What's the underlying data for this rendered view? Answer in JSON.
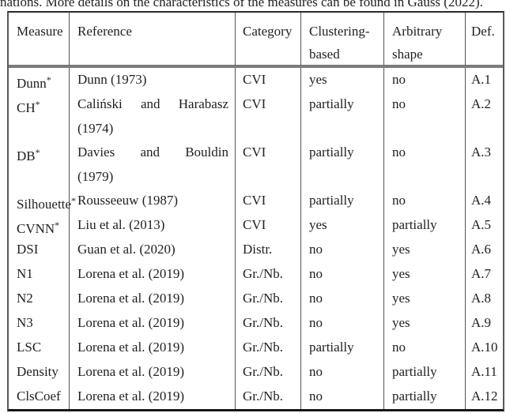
{
  "caption": "nations. More details on the characteristics of the measures can be found in Gauss (2022).",
  "footnote_marker": "*",
  "table": {
    "columns": [
      {
        "id": "measure",
        "label_lines": [
          "Measure"
        ]
      },
      {
        "id": "reference",
        "label_lines": [
          "Reference"
        ]
      },
      {
        "id": "category",
        "label_lines": [
          "Category"
        ]
      },
      {
        "id": "clustering-based",
        "label_lines": [
          "Clustering-",
          "based"
        ]
      },
      {
        "id": "arbitrary-shape",
        "label_lines": [
          "Arbitrary",
          "shape"
        ]
      },
      {
        "id": "def",
        "label_lines": [
          "Def."
        ]
      }
    ],
    "rows": [
      {
        "measure": "Dunn",
        "starred": true,
        "reference_lines": [
          "Dunn (1973)"
        ],
        "category": "CVI",
        "clustering_based": "yes",
        "arbitrary_shape": "no",
        "def": "A.1"
      },
      {
        "measure": "CH",
        "starred": true,
        "reference_lines": [
          "Caliński and Harabasz",
          "(1974)"
        ],
        "category": "CVI",
        "clustering_based": "partially",
        "arbitrary_shape": "no",
        "def": "A.2"
      },
      {
        "measure": "DB",
        "starred": true,
        "reference_lines": [
          "Davies and Bouldin",
          "(1979)"
        ],
        "category": "CVI",
        "clustering_based": "partially",
        "arbitrary_shape": "no",
        "def": "A.3"
      },
      {
        "measure": "Silhouette",
        "starred": true,
        "reference_lines": [
          "Rousseeuw (1987)"
        ],
        "category": "CVI",
        "clustering_based": "partially",
        "arbitrary_shape": "no",
        "def": "A.4"
      },
      {
        "measure": "CVNN",
        "starred": true,
        "reference_lines": [
          "Liu et al. (2013)"
        ],
        "category": "CVI",
        "clustering_based": "yes",
        "arbitrary_shape": "partially",
        "def": "A.5"
      },
      {
        "measure": "DSI",
        "starred": false,
        "reference_lines": [
          "Guan et al. (2020)"
        ],
        "category": "Distr.",
        "clustering_based": "no",
        "arbitrary_shape": "yes",
        "def": "A.6"
      },
      {
        "measure": "N1",
        "starred": false,
        "reference_lines": [
          "Lorena et al. (2019)"
        ],
        "category": "Gr./Nb.",
        "clustering_based": "no",
        "arbitrary_shape": "yes",
        "def": "A.7"
      },
      {
        "measure": "N2",
        "starred": false,
        "reference_lines": [
          "Lorena et al. (2019)"
        ],
        "category": "Gr./Nb.",
        "clustering_based": "no",
        "arbitrary_shape": "yes",
        "def": "A.8"
      },
      {
        "measure": "N3",
        "starred": false,
        "reference_lines": [
          "Lorena et al. (2019)"
        ],
        "category": "Gr./Nb.",
        "clustering_based": "no",
        "arbitrary_shape": "yes",
        "def": "A.9"
      },
      {
        "measure": "LSC",
        "starred": false,
        "reference_lines": [
          "Lorena et al. (2019)"
        ],
        "category": "Gr./Nb.",
        "clustering_based": "partially",
        "arbitrary_shape": "no",
        "def": "A.10"
      },
      {
        "measure": "Density",
        "starred": false,
        "reference_lines": [
          "Lorena et al. (2019)"
        ],
        "category": "Gr./Nb.",
        "clustering_based": "no",
        "arbitrary_shape": "partially",
        "def": "A.11"
      },
      {
        "measure": "ClsCoef",
        "starred": false,
        "reference_lines": [
          "Lorena et al. (2019)"
        ],
        "category": "Gr./Nb.",
        "clustering_based": "no",
        "arbitrary_shape": "partially",
        "def": "A.12"
      }
    ]
  }
}
